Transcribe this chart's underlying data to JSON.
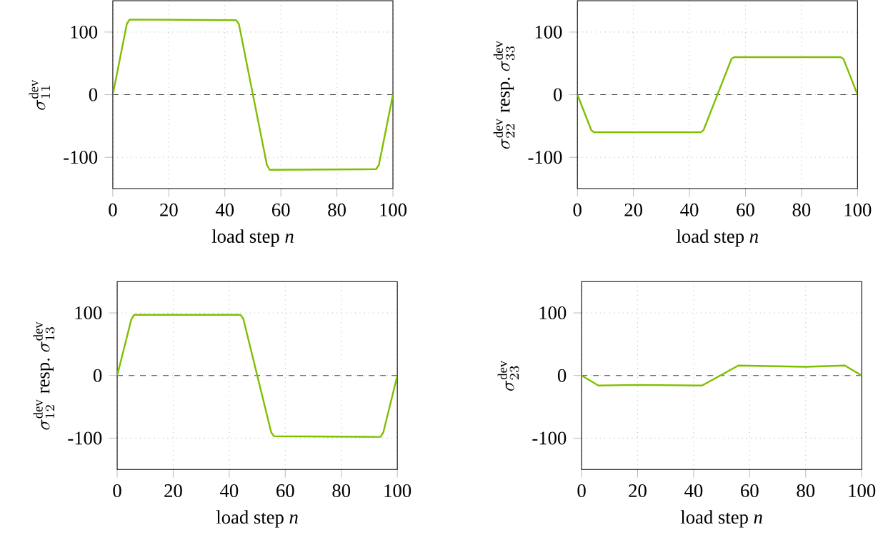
{
  "chart_data": [
    {
      "type": "line",
      "xlabel": "load step *n*",
      "ylabel": "\\sigma^{\\mathrm{dev}}_{11}",
      "xlim": [
        0,
        100
      ],
      "ylim": [
        -150,
        150
      ],
      "xticks": [
        0,
        20,
        40,
        60,
        80,
        100
      ],
      "yticks": [
        -100,
        0,
        100
      ],
      "grid": true,
      "line_style": "solid",
      "ref_lines": [
        {
          "axis": "y",
          "value": 0,
          "color": "#444444",
          "line_style": "dashed"
        }
      ],
      "series": [
        {
          "color": "#7fbf00",
          "x": [
            0,
            5,
            6,
            44,
            45,
            55,
            56,
            94,
            95,
            100
          ],
          "values": [
            0,
            113,
            120,
            119,
            113,
            -112,
            -120,
            -119,
            -112,
            0
          ]
        }
      ]
    },
    {
      "type": "line",
      "xlabel": "load step *n*",
      "ylabel": "\\sigma^{\\mathrm{dev}}_{22}\\ \\mbox{resp.}\\ \\sigma^{\\mathrm{dev}}_{33}",
      "xlim": [
        0,
        100
      ],
      "ylim": [
        -150,
        150
      ],
      "xticks": [
        0,
        20,
        40,
        60,
        80,
        100
      ],
      "yticks": [
        -100,
        0,
        100
      ],
      "grid": true,
      "line_style": "solid",
      "ref_lines": [
        {
          "axis": "y",
          "value": 0,
          "color": "#444444",
          "line_style": "dashed"
        }
      ],
      "series": [
        {
          "color": "#7fbf00",
          "x": [
            0,
            5,
            6,
            44,
            45,
            55,
            56,
            94,
            95,
            100
          ],
          "values": [
            0,
            -57,
            -60,
            -60,
            -57,
            57,
            60,
            60,
            57,
            0
          ]
        }
      ]
    },
    {
      "type": "line",
      "xlabel": "load step *n*",
      "ylabel": "\\sigma^{\\mathrm{dev}}_{12}\\ \\mbox{resp.}\\ \\sigma^{\\mathrm{dev}}_{13}",
      "xlim": [
        0,
        100
      ],
      "ylim": [
        -150,
        150
      ],
      "xticks": [
        0,
        20,
        40,
        60,
        80,
        100
      ],
      "yticks": [
        -100,
        0,
        100
      ],
      "grid": true,
      "line_style": "solid",
      "ref_lines": [
        {
          "axis": "y",
          "value": 0,
          "color": "#444444",
          "line_style": "dashed"
        }
      ],
      "series": [
        {
          "color": "#7fbf00",
          "x": [
            0,
            5,
            6,
            44,
            45,
            55,
            56,
            94,
            95,
            100
          ],
          "values": [
            0,
            89,
            97,
            97,
            91,
            -91,
            -97,
            -98,
            -91,
            0
          ]
        }
      ]
    },
    {
      "type": "line",
      "xlabel": "load step *n*",
      "ylabel": "\\sigma^{\\mathrm{dev}}_{23}",
      "xlim": [
        0,
        100
      ],
      "ylim": [
        -150,
        150
      ],
      "xticks": [
        0,
        20,
        40,
        60,
        80,
        100
      ],
      "yticks": [
        -100,
        0,
        100
      ],
      "grid": true,
      "line_style": "solid",
      "ref_lines": [
        {
          "axis": "y",
          "value": 0,
          "color": "#444444",
          "line_style": "dashed"
        }
      ],
      "series": [
        {
          "color": "#7fbf00",
          "x": [
            0,
            6,
            20,
            43,
            56,
            80,
            94,
            100
          ],
          "values": [
            0,
            -16,
            -15,
            -16,
            16,
            14,
            16,
            0
          ]
        }
      ]
    }
  ]
}
